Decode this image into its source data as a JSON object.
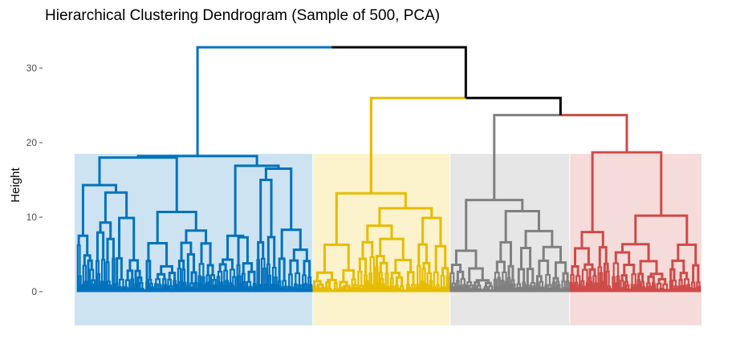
{
  "chart_data": {
    "type": "dendrogram",
    "title": "Hierarchical Clustering Dendrogram (Sample of 500, PCA)",
    "xlabel": "",
    "ylabel": "Height",
    "ylim": [
      -4.5,
      33
    ],
    "y_ticks": [
      0,
      10,
      20,
      30
    ],
    "grid": false,
    "n_leaves": 500,
    "cut_height": 18.5,
    "merge_heights_top": [
      32.8,
      26.0,
      23.8
    ],
    "clusters": [
      {
        "id": 1,
        "color": "#0072BD",
        "fill": "#CDE3F2",
        "leaf_range": [
          0,
          188
        ],
        "root_height": 18.2
      },
      {
        "id": 2,
        "color": "#E6BC00",
        "fill": "#FCF2CC",
        "leaf_range": [
          189,
          298
        ],
        "root_height": 25.9
      },
      {
        "id": 3,
        "color": "#808080",
        "fill": "#E6E6E6",
        "leaf_range": [
          299,
          394
        ],
        "root_height": 23.7
      },
      {
        "id": 4,
        "color": "#CD4B48",
        "fill": "#F5DBDA",
        "leaf_range": [
          395,
          499
        ],
        "root_height": 23.7
      }
    ],
    "top_link_color": "#000000"
  }
}
